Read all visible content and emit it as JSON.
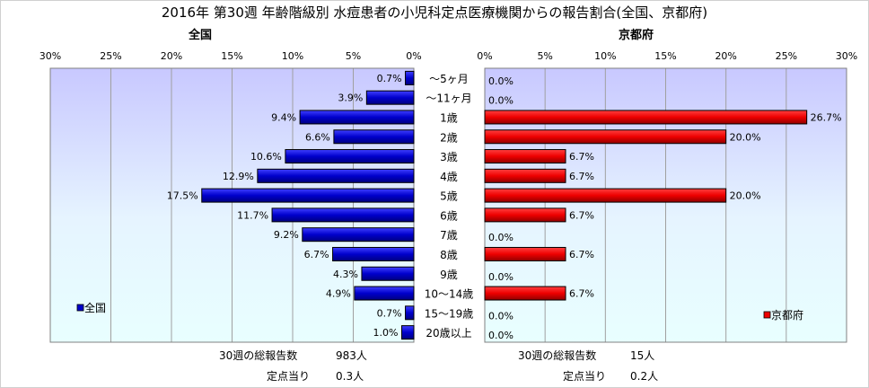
{
  "title": "2016年 第30週 年齢階級別 水痘患者の小児科定点医療機関からの報告割合(全国、京都府)",
  "chart_data": [
    {
      "type": "bar",
      "orientation": "horizontal",
      "subtitle": "全国",
      "series": [
        {
          "name": "全国",
          "color": "#0000cc",
          "values": [
            0.7,
            3.9,
            9.4,
            6.6,
            10.6,
            12.9,
            17.5,
            11.7,
            9.2,
            6.7,
            4.3,
            4.9,
            0.7,
            1.0
          ]
        }
      ],
      "value_labels": [
        "0.7%",
        "3.9%",
        "9.4%",
        "6.6%",
        "10.6%",
        "12.9%",
        "17.5%",
        "11.7%",
        "9.2%",
        "6.7%",
        "4.3%",
        "4.9%",
        "0.7%",
        "1.0%"
      ],
      "xlim": [
        0,
        30
      ],
      "x_reversed": true,
      "x_ticks": [
        "30%",
        "25%",
        "20%",
        "15%",
        "10%",
        "5%",
        "0%"
      ],
      "legend_position": "bottom-left",
      "stats": {
        "total_label": "30週の総報告数",
        "total_value": "983人",
        "per_label": "定点当り",
        "per_value": "0.3人"
      }
    },
    {
      "type": "bar",
      "orientation": "horizontal",
      "subtitle": "京都府",
      "series": [
        {
          "name": "京都府",
          "color": "#ee0000",
          "values": [
            0.0,
            0.0,
            26.7,
            20.0,
            6.7,
            6.7,
            20.0,
            6.7,
            0.0,
            6.7,
            0.0,
            6.7,
            0.0,
            0.0
          ]
        }
      ],
      "value_labels": [
        "0.0%",
        "0.0%",
        "26.7%",
        "20.0%",
        "6.7%",
        "6.7%",
        "20.0%",
        "6.7%",
        "0.0%",
        "6.7%",
        "0.0%",
        "6.7%",
        "0.0%",
        "0.0%"
      ],
      "xlim": [
        0,
        30
      ],
      "x_ticks": [
        "0%",
        "5%",
        "10%",
        "15%",
        "20%",
        "25%",
        "30%"
      ],
      "legend_position": "bottom-right",
      "stats": {
        "total_label": "30週の総報告数",
        "total_value": "15人",
        "per_label": "定点当り",
        "per_value": "0.2人"
      }
    }
  ],
  "categories": [
    "～5ヶ月",
    "～11ヶ月",
    "1歳",
    "2歳",
    "3歳",
    "4歳",
    "5歳",
    "6歳",
    "7歳",
    "8歳",
    "9歳",
    "10～14歳",
    "15～19歳",
    "20歳以上"
  ]
}
